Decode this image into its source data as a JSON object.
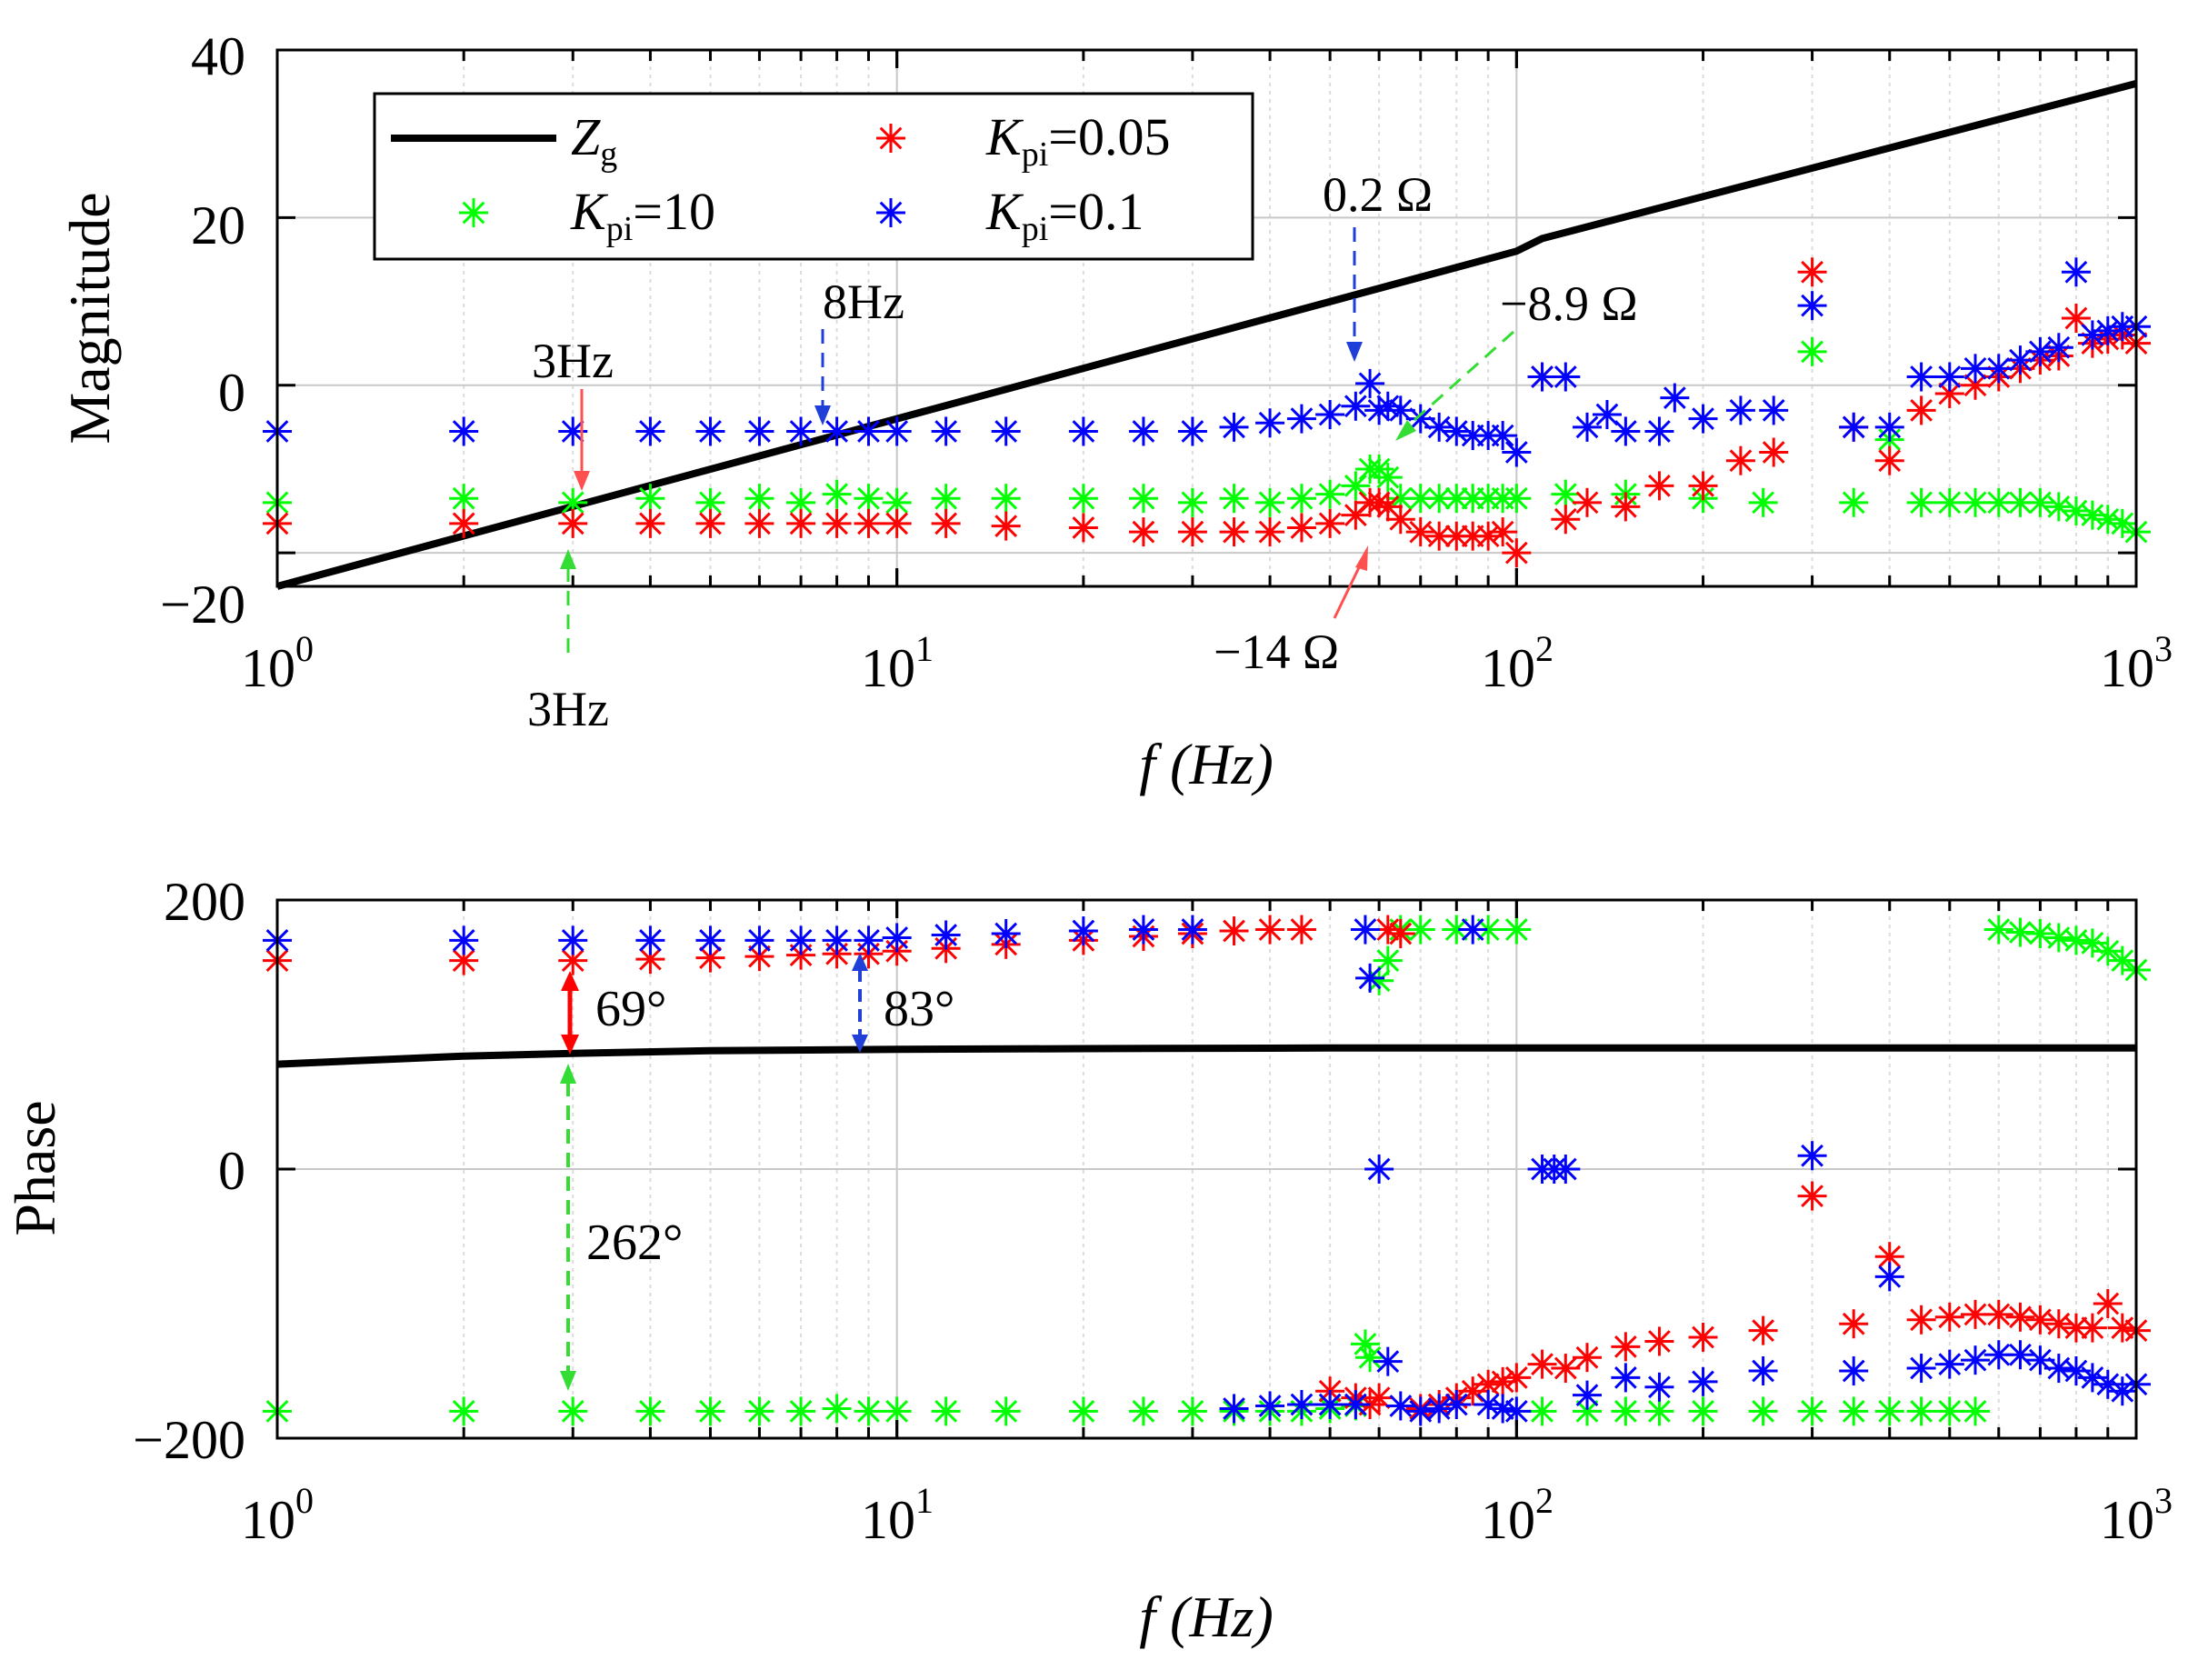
{
  "colors": {
    "zg": "#000000",
    "k10": "#00ff00",
    "k005": "#ff0000",
    "k01": "#0000ff",
    "grid": "#d9d9d9",
    "annot_red": "#ff5050",
    "annot_green": "#33dd33",
    "annot_blue": "#1f3fd8"
  },
  "legend": {
    "zg_main": "Z",
    "zg_sub": "g",
    "k_main": "K",
    "k_sub": "pi",
    "k10_val": "=10",
    "k005_val": "=0.05",
    "k01_val": "=0.1"
  },
  "annotations": {
    "mag_3hz_red": "3Hz",
    "mag_3hz_green": "3Hz",
    "mag_8hz": "8Hz",
    "mag_02": "0.2 Ω",
    "mag_m89": "−8.9 Ω",
    "mag_m14": "−14 Ω",
    "ph_69": "69°",
    "ph_83": "83°",
    "ph_262": "262°"
  },
  "chart_data": [
    {
      "type": "scatter",
      "panel": "magnitude",
      "title": "",
      "xlabel": "f  (Hz)",
      "ylabel": "Magnitude",
      "xscale": "log",
      "xlim": [
        1,
        1000
      ],
      "ylim": [
        -24,
        40
      ],
      "xticks": [
        1,
        10,
        100,
        1000
      ],
      "xtick_labels": [
        {
          "base": "10",
          "exp": "0"
        },
        {
          "base": "10",
          "exp": "1"
        },
        {
          "base": "10",
          "exp": "2"
        },
        {
          "base": "10",
          "exp": "3"
        }
      ],
      "yticks": [
        -20,
        0,
        20,
        40
      ],
      "ytick_labels": [
        "−20",
        "0",
        "20",
        "40"
      ],
      "grid": true,
      "legend_location": "top-left",
      "series": [
        {
          "name": "Zg",
          "kind": "line",
          "x": [
            1,
            100,
            110,
            1000
          ],
          "y": [
            -24,
            16,
            17.5,
            36
          ]
        },
        {
          "name": "Kpi=10",
          "kind": "markers",
          "x": [
            1,
            2,
            3,
            4,
            5,
            6,
            7,
            8,
            9,
            10,
            12,
            15,
            20,
            25,
            30,
            35,
            40,
            45,
            50,
            55,
            58,
            60,
            62,
            65,
            70,
            75,
            80,
            85,
            90,
            95,
            100,
            120,
            150,
            200,
            250,
            300,
            350,
            400,
            450,
            500,
            550,
            600,
            650,
            700,
            750,
            800,
            850,
            900,
            950,
            1000
          ],
          "y": [
            -14,
            -13.5,
            -14,
            -13.5,
            -14,
            -13.5,
            -14,
            -13,
            -13.5,
            -14,
            -13.5,
            -13.5,
            -13.5,
            -13.5,
            -14,
            -13.5,
            -14,
            -13.5,
            -13,
            -12,
            -10,
            -10,
            -11,
            -13.5,
            -13.5,
            -13.5,
            -13.5,
            -13.5,
            -13.5,
            -13.5,
            -13.5,
            -13,
            -13,
            -13.5,
            -14,
            4,
            -14,
            -6.5,
            -14,
            -14,
            -14,
            -14,
            -14,
            -14,
            -14.5,
            -15,
            -15.5,
            -16,
            -16.5,
            -17.5
          ]
        },
        {
          "name": "Kpi=0.05",
          "kind": "markers",
          "x": [
            1,
            2,
            3,
            4,
            5,
            6,
            7,
            8,
            9,
            10,
            12,
            15,
            20,
            25,
            30,
            35,
            40,
            45,
            50,
            55,
            58,
            60,
            62,
            65,
            70,
            75,
            80,
            85,
            90,
            95,
            100,
            110,
            120,
            130,
            150,
            170,
            200,
            230,
            260,
            300,
            350,
            400,
            450,
            500,
            550,
            600,
            650,
            700,
            750,
            800,
            850,
            900,
            950,
            1000
          ],
          "y": [
            -16.5,
            -16.5,
            -16.5,
            -16.5,
            -16.5,
            -16.5,
            -16.5,
            -16.5,
            -16.5,
            -16.5,
            -16.5,
            -16.8,
            -17,
            -17.5,
            -17.5,
            -17.5,
            -17.5,
            -17,
            -16.5,
            -15.5,
            -14,
            -14,
            -14.5,
            -16,
            -17.5,
            -18,
            -18,
            -18,
            -18,
            -17.5,
            -20,
            1,
            -16,
            -14,
            -14.5,
            -12,
            -12,
            -9,
            -8,
            13.5,
            -5,
            -9,
            -3,
            -1,
            0,
            1,
            2,
            3,
            3.5,
            8,
            5,
            5.5,
            6,
            5
          ]
        },
        {
          "name": "Kpi=0.1",
          "kind": "markers",
          "x": [
            1,
            2,
            3,
            4,
            5,
            6,
            7,
            8,
            9,
            10,
            12,
            15,
            20,
            25,
            30,
            35,
            40,
            45,
            50,
            55,
            58,
            60,
            62,
            65,
            70,
            75,
            80,
            85,
            90,
            95,
            100,
            110,
            120,
            130,
            140,
            150,
            170,
            180,
            200,
            230,
            260,
            300,
            350,
            400,
            450,
            500,
            550,
            600,
            650,
            700,
            750,
            800,
            850,
            900,
            950,
            1000
          ],
          "y": [
            -5.5,
            -5.5,
            -5.5,
            -5.5,
            -5.5,
            -5.5,
            -5.5,
            -5.5,
            -5.5,
            -5.5,
            -5.5,
            -5.5,
            -5.5,
            -5.5,
            -5.5,
            -5,
            -4.5,
            -4,
            -3.5,
            -2.5,
            0.2,
            -3,
            -2.5,
            -3,
            -4,
            -5,
            -5.5,
            -6,
            -6,
            -6,
            -8,
            1,
            1,
            -5,
            -3.5,
            -5.5,
            -5.5,
            -1.5,
            -4,
            -3,
            -3,
            9.5,
            -5,
            -5,
            1,
            1,
            2,
            2,
            3,
            4,
            4.5,
            13.5,
            6,
            6.5,
            7,
            7
          ]
        }
      ]
    },
    {
      "type": "scatter",
      "panel": "phase",
      "title": "",
      "xlabel": "f  (Hz)",
      "ylabel": "Phase",
      "xscale": "log",
      "xlim": [
        1,
        1000
      ],
      "ylim": [
        -200,
        200
      ],
      "xticks": [
        1,
        10,
        100,
        1000
      ],
      "xtick_labels": [
        {
          "base": "10",
          "exp": "0"
        },
        {
          "base": "10",
          "exp": "1"
        },
        {
          "base": "10",
          "exp": "2"
        },
        {
          "base": "10",
          "exp": "3"
        }
      ],
      "yticks": [
        -200,
        0,
        200
      ],
      "ytick_labels": [
        "−200",
        "0",
        "200"
      ],
      "grid": true,
      "series": [
        {
          "name": "Zg",
          "kind": "line",
          "x": [
            1,
            2,
            3,
            5,
            10,
            20,
            50,
            100,
            1000
          ],
          "y": [
            78,
            84,
            86,
            88,
            89,
            89.5,
            90,
            90,
            90
          ]
        },
        {
          "name": "Kpi=10",
          "kind": "markers",
          "x": [
            1,
            2,
            3,
            4,
            5,
            6,
            7,
            8,
            9,
            10,
            12,
            15,
            20,
            25,
            30,
            35,
            40,
            45,
            50,
            55,
            57,
            58,
            60,
            62,
            65,
            70,
            80,
            90,
            100,
            110,
            130,
            150,
            170,
            200,
            250,
            300,
            350,
            400,
            450,
            500,
            550,
            600,
            650,
            700,
            750,
            800,
            850,
            900,
            950,
            1000
          ],
          "y": [
            -180,
            -180,
            -180,
            -180,
            -180,
            -180,
            -180,
            -178,
            -180,
            -180,
            -180,
            -180,
            -180,
            -180,
            -180,
            -180,
            -180,
            -180,
            -178,
            -176,
            -130,
            -140,
            140,
            155,
            178,
            178,
            178,
            178,
            178,
            -180,
            -180,
            -180,
            -180,
            -180,
            -180,
            -180,
            -180,
            -180,
            -180,
            -180,
            -180,
            178,
            176,
            175,
            172,
            170,
            168,
            162,
            155,
            148
          ]
        },
        {
          "name": "Kpi=0.05",
          "kind": "markers",
          "x": [
            1,
            2,
            3,
            4,
            5,
            6,
            7,
            8,
            9,
            10,
            12,
            15,
            20,
            25,
            30,
            35,
            40,
            45,
            50,
            55,
            58,
            60,
            62,
            65,
            70,
            75,
            80,
            85,
            90,
            95,
            100,
            110,
            120,
            130,
            150,
            170,
            200,
            250,
            300,
            350,
            400,
            450,
            500,
            550,
            600,
            650,
            700,
            750,
            800,
            850,
            900,
            950,
            1000
          ],
          "y": [
            155,
            155,
            155,
            156,
            157,
            158,
            159,
            160,
            160,
            162,
            164,
            167,
            170,
            173,
            175,
            177,
            178,
            178,
            -165,
            -170,
            -175,
            -170,
            178,
            175,
            -178,
            -175,
            -170,
            -165,
            -160,
            -158,
            -155,
            -145,
            -148,
            -140,
            -132,
            -128,
            -125,
            -120,
            -20,
            -115,
            -65,
            -112,
            -110,
            -108,
            -108,
            -110,
            -112,
            -115,
            -118,
            -118,
            -100,
            -118,
            -120
          ]
        },
        {
          "name": "Kpi=0.1",
          "kind": "markers",
          "x": [
            1,
            2,
            3,
            4,
            5,
            6,
            7,
            8,
            9,
            10,
            12,
            15,
            20,
            25,
            30,
            35,
            40,
            45,
            50,
            55,
            57,
            58,
            60,
            62,
            65,
            70,
            75,
            80,
            85,
            90,
            95,
            100,
            110,
            115,
            120,
            130,
            150,
            170,
            200,
            250,
            300,
            350,
            400,
            450,
            500,
            550,
            600,
            650,
            700,
            750,
            800,
            850,
            900,
            950,
            1000
          ],
          "y": [
            170,
            170,
            170,
            170,
            170,
            170,
            170,
            170,
            170,
            172,
            174,
            175,
            177,
            178,
            178,
            -178,
            -176,
            -175,
            -175,
            -175,
            178,
            142,
            0,
            -143,
            -176,
            -180,
            -178,
            -175,
            178,
            -175,
            -178,
            -180,
            0,
            0,
            0,
            -168,
            -155,
            -162,
            -158,
            -150,
            10,
            -150,
            -80,
            -148,
            -145,
            -142,
            -138,
            -138,
            -142,
            -148,
            -150,
            -155,
            -160,
            -165,
            -160
          ]
        }
      ]
    }
  ]
}
